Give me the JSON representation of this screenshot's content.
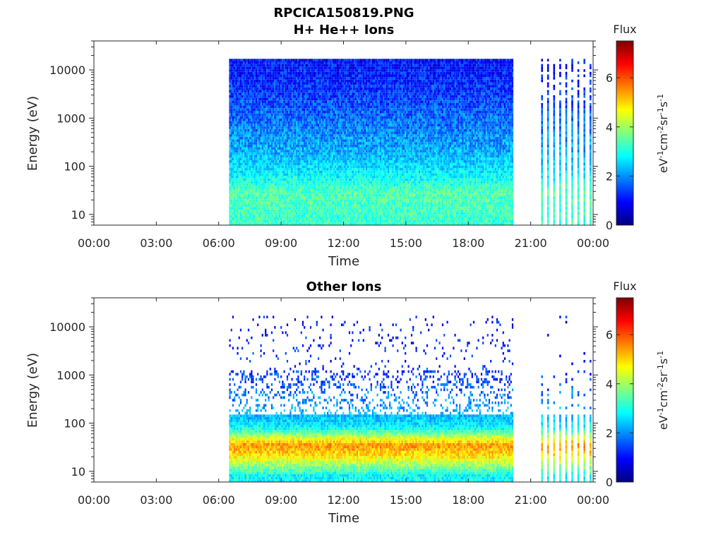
{
  "figure": {
    "title_line1": "RPCICA150819.PNG"
  },
  "colorbar": {
    "label": "Flux",
    "unit": "eV-1cm-2sr-1s-1",
    "ticks": [
      0,
      2,
      4,
      6
    ],
    "range": [
      0,
      7.5
    ],
    "colormap": "jet"
  },
  "chart_data": [
    {
      "type": "heatmap",
      "title": "H+ He++ Ions",
      "xlabel": "Time",
      "ylabel": "Energy (eV)",
      "yscale": "log",
      "ylim": [
        6,
        40000
      ],
      "xlim": [
        "00:00",
        "24:00"
      ],
      "x_ticks": [
        "00:00",
        "03:00",
        "06:00",
        "09:00",
        "12:00",
        "15:00",
        "18:00",
        "21:00",
        "00:00"
      ],
      "y_ticks": [
        "10",
        "100",
        "1000",
        "10000"
      ],
      "data_intervals": [
        {
          "start": "06:30",
          "end": "20:10",
          "pattern": "continuous"
        },
        {
          "start": "21:30",
          "end": "23:55",
          "pattern": "periodic sweeps"
        }
      ],
      "flux_profile": [
        {
          "energy_eV": 8,
          "flux": 3.2
        },
        {
          "energy_eV": 30,
          "flux": 3.4
        },
        {
          "energy_eV": 60,
          "flux": 2.8
        },
        {
          "energy_eV": 200,
          "flux": 2.2
        },
        {
          "energy_eV": 1000,
          "flux": 1.7
        },
        {
          "energy_eV": 5000,
          "flux": 1.2
        },
        {
          "energy_eV": 15000,
          "flux": 1.0
        }
      ]
    },
    {
      "type": "heatmap",
      "title": "Other Ions",
      "xlabel": "Time",
      "ylabel": "Energy (eV)",
      "yscale": "log",
      "ylim": [
        6,
        40000
      ],
      "xlim": [
        "00:00",
        "24:00"
      ],
      "x_ticks": [
        "00:00",
        "03:00",
        "06:00",
        "09:00",
        "12:00",
        "15:00",
        "18:00",
        "21:00",
        "00:00"
      ],
      "y_ticks": [
        "10",
        "100",
        "1000",
        "10000"
      ],
      "data_intervals": [
        {
          "start": "06:30",
          "end": "20:10",
          "pattern": "continuous"
        },
        {
          "start": "21:30",
          "end": "23:55",
          "pattern": "periodic sweeps"
        }
      ],
      "flux_profile": [
        {
          "energy_eV": 8,
          "flux": 2.8
        },
        {
          "energy_eV": 20,
          "flux": 4.8
        },
        {
          "energy_eV": 35,
          "flux": 5.5
        },
        {
          "energy_eV": 80,
          "flux": 2.8
        },
        {
          "energy_eV": 120,
          "flux": 2.4
        },
        {
          "energy_eV": 1000,
          "flux": 1.3
        },
        {
          "energy_eV": 10000,
          "flux": 1.0
        }
      ]
    }
  ]
}
